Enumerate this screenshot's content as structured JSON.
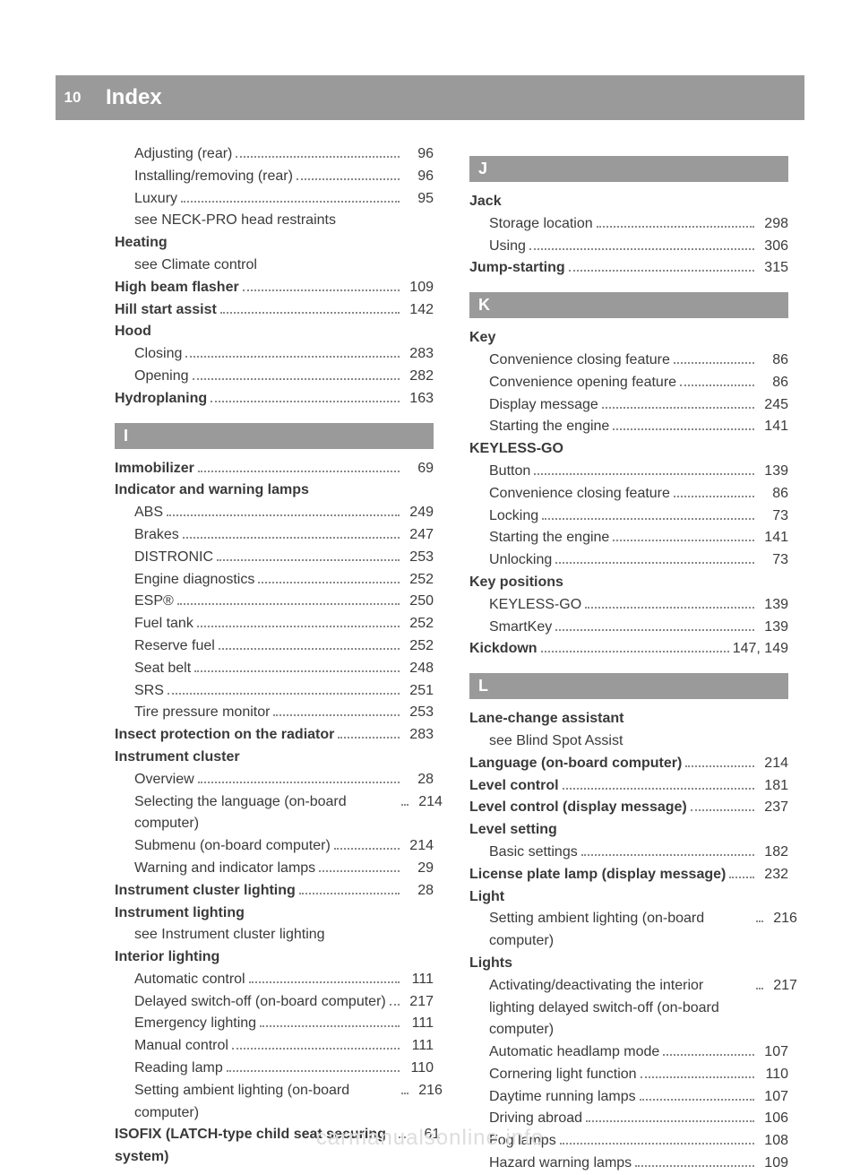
{
  "page_number": "10",
  "header_title": "Index",
  "watermark": "carmanualsonline.info",
  "colors": {
    "bar_bg": "#9a9a9a",
    "bar_text": "#ffffff",
    "text": "#3a3a3a",
    "watermark": "#dddddd"
  },
  "left_column": [
    {
      "sub": true,
      "bold": false,
      "label": "Adjusting (rear)",
      "page": "96"
    },
    {
      "sub": true,
      "bold": false,
      "label": "Installing/removing (rear)",
      "page": "96"
    },
    {
      "sub": true,
      "bold": false,
      "label": "Luxury",
      "page": "95"
    },
    {
      "sub": true,
      "bold": false,
      "label": "see NECK-PRO head restraints",
      "page": null
    },
    {
      "sub": false,
      "bold": true,
      "label": "Heating",
      "page": null
    },
    {
      "sub": true,
      "bold": false,
      "label": "see Climate control",
      "page": null
    },
    {
      "sub": false,
      "bold": true,
      "label": "High beam flasher",
      "page": "109"
    },
    {
      "sub": false,
      "bold": true,
      "label": "Hill start assist",
      "page": "142"
    },
    {
      "sub": false,
      "bold": true,
      "label": "Hood",
      "page": null
    },
    {
      "sub": true,
      "bold": false,
      "label": "Closing",
      "page": "283"
    },
    {
      "sub": true,
      "bold": false,
      "label": "Opening",
      "page": "282"
    },
    {
      "sub": false,
      "bold": true,
      "label": "Hydroplaning",
      "page": "163"
    },
    {
      "section": "I"
    },
    {
      "sub": false,
      "bold": true,
      "label": "Immobilizer",
      "page": "69"
    },
    {
      "sub": false,
      "bold": true,
      "label": "Indicator and warning lamps",
      "page": null
    },
    {
      "sub": true,
      "bold": false,
      "label": "ABS",
      "page": "249"
    },
    {
      "sub": true,
      "bold": false,
      "label": "Brakes",
      "page": "247"
    },
    {
      "sub": true,
      "bold": false,
      "label": "DISTRONIC",
      "page": "253"
    },
    {
      "sub": true,
      "bold": false,
      "label": "Engine diagnostics",
      "page": "252"
    },
    {
      "sub": true,
      "bold": false,
      "label": "ESP®",
      "page": "250"
    },
    {
      "sub": true,
      "bold": false,
      "label": "Fuel tank",
      "page": "252"
    },
    {
      "sub": true,
      "bold": false,
      "label": "Reserve fuel",
      "page": "252"
    },
    {
      "sub": true,
      "bold": false,
      "label": "Seat belt",
      "page": "248"
    },
    {
      "sub": true,
      "bold": false,
      "label": "SRS",
      "page": "251"
    },
    {
      "sub": true,
      "bold": false,
      "label": "Tire pressure monitor",
      "page": "253"
    },
    {
      "sub": false,
      "bold": true,
      "label": "Insect protection on the radiator",
      "page": "283"
    },
    {
      "sub": false,
      "bold": true,
      "label": "Instrument cluster",
      "page": null
    },
    {
      "sub": true,
      "bold": false,
      "label": "Overview",
      "page": "28"
    },
    {
      "sub": true,
      "bold": false,
      "label": "Selecting the language (on-board computer)",
      "page": "214"
    },
    {
      "sub": true,
      "bold": false,
      "label": "Submenu (on-board computer)",
      "page": "214"
    },
    {
      "sub": true,
      "bold": false,
      "label": "Warning and indicator lamps",
      "page": "29"
    },
    {
      "sub": false,
      "bold": true,
      "label": "Instrument cluster lighting",
      "page": "28"
    },
    {
      "sub": false,
      "bold": true,
      "label": "Instrument lighting",
      "page": null
    },
    {
      "sub": true,
      "bold": false,
      "label": "see Instrument cluster lighting",
      "page": null
    },
    {
      "sub": false,
      "bold": true,
      "label": "Interior lighting",
      "page": null
    },
    {
      "sub": true,
      "bold": false,
      "label": "Automatic control",
      "page": "111"
    },
    {
      "sub": true,
      "bold": false,
      "label": "Delayed switch-off (on-board computer)",
      "page": "217"
    },
    {
      "sub": true,
      "bold": false,
      "label": "Emergency lighting",
      "page": "111"
    },
    {
      "sub": true,
      "bold": false,
      "label": "Manual control",
      "page": "111"
    },
    {
      "sub": true,
      "bold": false,
      "label": "Reading lamp",
      "page": "110"
    },
    {
      "sub": true,
      "bold": false,
      "label": "Setting ambient lighting (on-board computer)",
      "page": "216"
    },
    {
      "sub": false,
      "bold": true,
      "label": "ISOFIX (LATCH-type child seat securing system)",
      "page": "61"
    }
  ],
  "right_column": [
    {
      "section": "J"
    },
    {
      "sub": false,
      "bold": true,
      "label": "Jack",
      "page": null
    },
    {
      "sub": true,
      "bold": false,
      "label": "Storage location",
      "page": "298"
    },
    {
      "sub": true,
      "bold": false,
      "label": "Using",
      "page": "306"
    },
    {
      "sub": false,
      "bold": true,
      "label": "Jump-starting",
      "page": "315"
    },
    {
      "section": "K"
    },
    {
      "sub": false,
      "bold": true,
      "label": "Key",
      "page": null
    },
    {
      "sub": true,
      "bold": false,
      "label": "Convenience closing feature",
      "page": "86"
    },
    {
      "sub": true,
      "bold": false,
      "label": "Convenience opening feature",
      "page": "86"
    },
    {
      "sub": true,
      "bold": false,
      "label": "Display message",
      "page": "245"
    },
    {
      "sub": true,
      "bold": false,
      "label": "Starting the engine",
      "page": "141"
    },
    {
      "sub": false,
      "bold": true,
      "label": "KEYLESS-GO",
      "page": null
    },
    {
      "sub": true,
      "bold": false,
      "label": "Button",
      "page": "139"
    },
    {
      "sub": true,
      "bold": false,
      "label": "Convenience closing feature",
      "page": "86"
    },
    {
      "sub": true,
      "bold": false,
      "label": "Locking",
      "page": "73"
    },
    {
      "sub": true,
      "bold": false,
      "label": "Starting the engine",
      "page": "141"
    },
    {
      "sub": true,
      "bold": false,
      "label": "Unlocking",
      "page": "73"
    },
    {
      "sub": false,
      "bold": true,
      "label": "Key positions",
      "page": null
    },
    {
      "sub": true,
      "bold": false,
      "label": "KEYLESS-GO",
      "page": "139"
    },
    {
      "sub": true,
      "bold": false,
      "label": "SmartKey",
      "page": "139"
    },
    {
      "sub": false,
      "bold": true,
      "label": "Kickdown",
      "page": "147, 149"
    },
    {
      "section": "L"
    },
    {
      "sub": false,
      "bold": true,
      "label": "Lane-change assistant",
      "page": null
    },
    {
      "sub": true,
      "bold": false,
      "label": "see Blind Spot Assist",
      "page": null
    },
    {
      "sub": false,
      "bold": true,
      "label": "Language (on-board computer)",
      "page": "214"
    },
    {
      "sub": false,
      "bold": true,
      "label": "Level control",
      "page": "181"
    },
    {
      "sub": false,
      "bold": true,
      "label": "Level control (display message)",
      "page": "237"
    },
    {
      "sub": false,
      "bold": true,
      "label": "Level setting",
      "page": null
    },
    {
      "sub": true,
      "bold": false,
      "label": "Basic settings",
      "page": "182"
    },
    {
      "sub": false,
      "bold": true,
      "label": "License plate lamp (display message)",
      "page": "232"
    },
    {
      "sub": false,
      "bold": true,
      "label": "Light",
      "page": null
    },
    {
      "sub": true,
      "bold": false,
      "label": "Setting ambient lighting (on-board computer)",
      "page": "216"
    },
    {
      "sub": false,
      "bold": true,
      "label": "Lights",
      "page": null
    },
    {
      "sub": true,
      "bold": false,
      "label": "Activating/deactivating the interior lighting delayed switch-off (on-board computer)",
      "page": "217"
    },
    {
      "sub": true,
      "bold": false,
      "label": "Automatic headlamp mode",
      "page": "107"
    },
    {
      "sub": true,
      "bold": false,
      "label": "Cornering light function",
      "page": "110"
    },
    {
      "sub": true,
      "bold": false,
      "label": "Daytime running lamps",
      "page": "107"
    },
    {
      "sub": true,
      "bold": false,
      "label": "Driving abroad",
      "page": "106"
    },
    {
      "sub": true,
      "bold": false,
      "label": "Fog lamps",
      "page": "108"
    },
    {
      "sub": true,
      "bold": false,
      "label": "Hazard warning lamps",
      "page": "109"
    }
  ]
}
